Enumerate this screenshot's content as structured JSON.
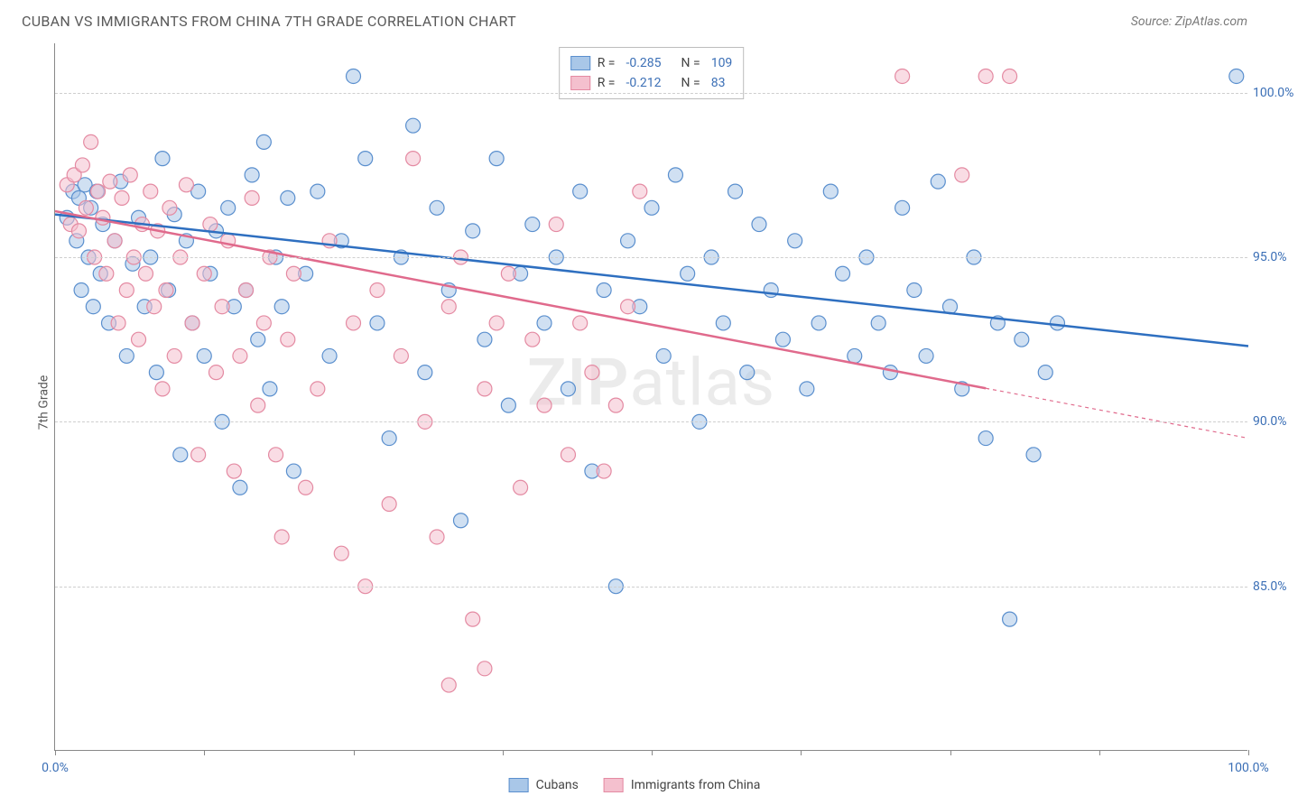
{
  "title": "CUBAN VS IMMIGRANTS FROM CHINA 7TH GRADE CORRELATION CHART",
  "source": "Source: ZipAtlas.com",
  "watermark_a": "ZIP",
  "watermark_b": "atlas",
  "y_axis_label": "7th Grade",
  "chart": {
    "type": "scatter",
    "background_color": "#ffffff",
    "grid_color": "#cfcfcf",
    "axis_color": "#888888",
    "xlim": [
      0,
      100
    ],
    "ylim": [
      80,
      101.5
    ],
    "y_ticks": [
      {
        "v": 85,
        "label": "85.0%"
      },
      {
        "v": 90,
        "label": "90.0%"
      },
      {
        "v": 95,
        "label": "95.0%"
      },
      {
        "v": 100,
        "label": "100.0%"
      }
    ],
    "x_ticks": [
      0,
      12.5,
      25,
      37.5,
      50,
      62.5,
      75,
      87.5,
      100
    ],
    "x_left_label": "0.0%",
    "x_right_label": "100.0%",
    "marker_radius": 8,
    "marker_opacity": 0.55,
    "series": [
      {
        "name": "Cubans",
        "fill": "#a9c7e8",
        "stroke": "#5a8fce",
        "trend": {
          "y_at_x0": 96.3,
          "y_at_x100": 92.3,
          "solid_until_x": 100,
          "color": "#2e6fc0",
          "width": 2.5
        },
        "points": [
          [
            1,
            96.2
          ],
          [
            1.5,
            97.0
          ],
          [
            1.8,
            95.5
          ],
          [
            2,
            96.8
          ],
          [
            2.2,
            94.0
          ],
          [
            2.5,
            97.2
          ],
          [
            2.8,
            95.0
          ],
          [
            3,
            96.5
          ],
          [
            3.2,
            93.5
          ],
          [
            3.5,
            97.0
          ],
          [
            3.8,
            94.5
          ],
          [
            4,
            96.0
          ],
          [
            4.5,
            93.0
          ],
          [
            5,
            95.5
          ],
          [
            5.5,
            97.3
          ],
          [
            6,
            92.0
          ],
          [
            6.5,
            94.8
          ],
          [
            7,
            96.2
          ],
          [
            7.5,
            93.5
          ],
          [
            8,
            95.0
          ],
          [
            8.5,
            91.5
          ],
          [
            9,
            98.0
          ],
          [
            9.5,
            94.0
          ],
          [
            10,
            96.3
          ],
          [
            10.5,
            89.0
          ],
          [
            11,
            95.5
          ],
          [
            11.5,
            93.0
          ],
          [
            12,
            97.0
          ],
          [
            12.5,
            92.0
          ],
          [
            13,
            94.5
          ],
          [
            13.5,
            95.8
          ],
          [
            14,
            90.0
          ],
          [
            14.5,
            96.5
          ],
          [
            15,
            93.5
          ],
          [
            15.5,
            88.0
          ],
          [
            16,
            94.0
          ],
          [
            16.5,
            97.5
          ],
          [
            17,
            92.5
          ],
          [
            17.5,
            98.5
          ],
          [
            18,
            91.0
          ],
          [
            18.5,
            95.0
          ],
          [
            19,
            93.5
          ],
          [
            19.5,
            96.8
          ],
          [
            20,
            88.5
          ],
          [
            21,
            94.5
          ],
          [
            22,
            97.0
          ],
          [
            23,
            92.0
          ],
          [
            24,
            95.5
          ],
          [
            25,
            100.5
          ],
          [
            26,
            98.0
          ],
          [
            27,
            93.0
          ],
          [
            28,
            89.5
          ],
          [
            29,
            95.0
          ],
          [
            30,
            99.0
          ],
          [
            31,
            91.5
          ],
          [
            32,
            96.5
          ],
          [
            33,
            94.0
          ],
          [
            34,
            87.0
          ],
          [
            35,
            95.8
          ],
          [
            36,
            92.5
          ],
          [
            37,
            98.0
          ],
          [
            38,
            90.5
          ],
          [
            39,
            94.5
          ],
          [
            40,
            96.0
          ],
          [
            41,
            93.0
          ],
          [
            42,
            95.0
          ],
          [
            43,
            91.0
          ],
          [
            44,
            97.0
          ],
          [
            45,
            88.5
          ],
          [
            46,
            94.0
          ],
          [
            47,
            85.0
          ],
          [
            48,
            95.5
          ],
          [
            49,
            93.5
          ],
          [
            50,
            96.5
          ],
          [
            51,
            92.0
          ],
          [
            52,
            97.5
          ],
          [
            53,
            94.5
          ],
          [
            54,
            90.0
          ],
          [
            55,
            95.0
          ],
          [
            56,
            93.0
          ],
          [
            57,
            97.0
          ],
          [
            58,
            91.5
          ],
          [
            59,
            96.0
          ],
          [
            60,
            94.0
          ],
          [
            61,
            92.5
          ],
          [
            62,
            95.5
          ],
          [
            63,
            91.0
          ],
          [
            64,
            93.0
          ],
          [
            65,
            97.0
          ],
          [
            66,
            94.5
          ],
          [
            67,
            92.0
          ],
          [
            68,
            95.0
          ],
          [
            69,
            93.0
          ],
          [
            70,
            91.5
          ],
          [
            71,
            96.5
          ],
          [
            72,
            94.0
          ],
          [
            73,
            92.0
          ],
          [
            74,
            97.3
          ],
          [
            75,
            93.5
          ],
          [
            76,
            91.0
          ],
          [
            77,
            95.0
          ],
          [
            78,
            89.5
          ],
          [
            79,
            93.0
          ],
          [
            80,
            84.0
          ],
          [
            81,
            92.5
          ],
          [
            82,
            89.0
          ],
          [
            83,
            91.5
          ],
          [
            84,
            93.0
          ],
          [
            99,
            100.5
          ]
        ]
      },
      {
        "name": "Immigrants from China",
        "fill": "#f4c0ce",
        "stroke": "#e48aa2",
        "trend": {
          "y_at_x0": 96.4,
          "y_at_x100": 89.5,
          "solid_until_x": 78,
          "color": "#e06a8c",
          "width": 2.5
        },
        "points": [
          [
            1,
            97.2
          ],
          [
            1.3,
            96.0
          ],
          [
            1.6,
            97.5
          ],
          [
            2,
            95.8
          ],
          [
            2.3,
            97.8
          ],
          [
            2.6,
            96.5
          ],
          [
            3,
            98.5
          ],
          [
            3.3,
            95.0
          ],
          [
            3.6,
            97.0
          ],
          [
            4,
            96.2
          ],
          [
            4.3,
            94.5
          ],
          [
            4.6,
            97.3
          ],
          [
            5,
            95.5
          ],
          [
            5.3,
            93.0
          ],
          [
            5.6,
            96.8
          ],
          [
            6,
            94.0
          ],
          [
            6.3,
            97.5
          ],
          [
            6.6,
            95.0
          ],
          [
            7,
            92.5
          ],
          [
            7.3,
            96.0
          ],
          [
            7.6,
            94.5
          ],
          [
            8,
            97.0
          ],
          [
            8.3,
            93.5
          ],
          [
            8.6,
            95.8
          ],
          [
            9,
            91.0
          ],
          [
            9.3,
            94.0
          ],
          [
            9.6,
            96.5
          ],
          [
            10,
            92.0
          ],
          [
            10.5,
            95.0
          ],
          [
            11,
            97.2
          ],
          [
            11.5,
            93.0
          ],
          [
            12,
            89.0
          ],
          [
            12.5,
            94.5
          ],
          [
            13,
            96.0
          ],
          [
            13.5,
            91.5
          ],
          [
            14,
            93.5
          ],
          [
            14.5,
            95.5
          ],
          [
            15,
            88.5
          ],
          [
            15.5,
            92.0
          ],
          [
            16,
            94.0
          ],
          [
            16.5,
            96.8
          ],
          [
            17,
            90.5
          ],
          [
            17.5,
            93.0
          ],
          [
            18,
            95.0
          ],
          [
            18.5,
            89.0
          ],
          [
            19,
            86.5
          ],
          [
            19.5,
            92.5
          ],
          [
            20,
            94.5
          ],
          [
            21,
            88.0
          ],
          [
            22,
            91.0
          ],
          [
            23,
            95.5
          ],
          [
            24,
            86.0
          ],
          [
            25,
            93.0
          ],
          [
            26,
            85.0
          ],
          [
            27,
            94.0
          ],
          [
            28,
            87.5
          ],
          [
            29,
            92.0
          ],
          [
            30,
            98.0
          ],
          [
            31,
            90.0
          ],
          [
            32,
            86.5
          ],
          [
            33,
            93.5
          ],
          [
            34,
            95.0
          ],
          [
            35,
            84.0
          ],
          [
            36,
            91.0
          ],
          [
            37,
            93.0
          ],
          [
            38,
            94.5
          ],
          [
            39,
            88.0
          ],
          [
            40,
            92.5
          ],
          [
            41,
            90.5
          ],
          [
            42,
            96.0
          ],
          [
            43,
            89.0
          ],
          [
            44,
            93.0
          ],
          [
            45,
            91.5
          ],
          [
            46,
            88.5
          ],
          [
            47,
            90.5
          ],
          [
            48,
            93.5
          ],
          [
            49,
            97.0
          ],
          [
            71,
            100.5
          ],
          [
            76,
            97.5
          ],
          [
            78,
            100.5
          ],
          [
            80,
            100.5
          ],
          [
            33,
            82.0
          ],
          [
            36,
            82.5
          ]
        ]
      }
    ],
    "correlation_box": [
      {
        "swatch_fill": "#a9c7e8",
        "swatch_stroke": "#5a8fce",
        "r_label": "R =",
        "r": "-0.285",
        "n_label": "N =",
        "n": "109"
      },
      {
        "swatch_fill": "#f4c0ce",
        "swatch_stroke": "#e48aa2",
        "r_label": "R =",
        "r": "-0.212",
        "n_label": "N =",
        "n": "83"
      }
    ]
  },
  "bottom_legend": [
    {
      "swatch_fill": "#a9c7e8",
      "swatch_stroke": "#5a8fce",
      "label": "Cubans"
    },
    {
      "swatch_fill": "#f4c0ce",
      "swatch_stroke": "#e48aa2",
      "label": "Immigrants from China"
    }
  ]
}
